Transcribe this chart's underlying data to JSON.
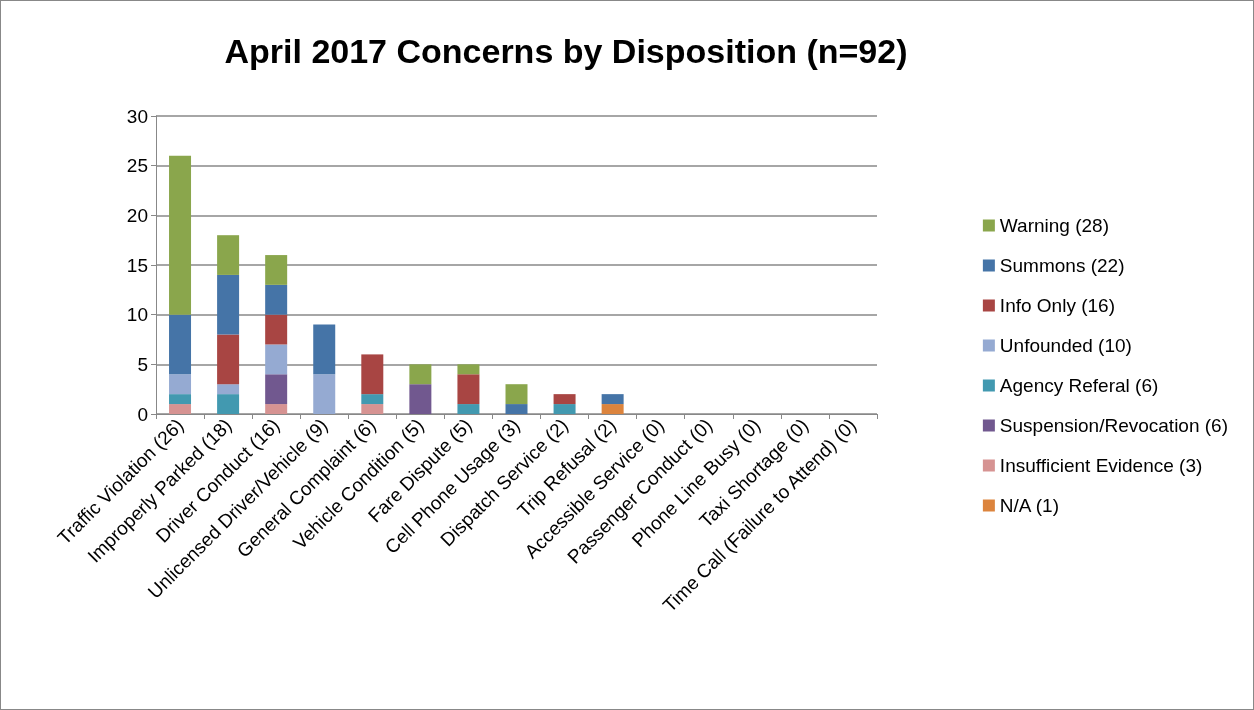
{
  "chart_data": {
    "type": "bar",
    "title": "April 2017 Concerns by Disposition (n=92)",
    "stacked": true,
    "legend": "right",
    "grid": "y",
    "categories": [
      "Traffic Violation (26)",
      "Improperly Parked (18)",
      "Driver Conduct (16)",
      "Unlicensed Driver/Vehicle (9)",
      "General Complaint (6)",
      "Vehicle Condition (5)",
      "Fare Dispute (5)",
      "Cell Phone Usage (3)",
      "Dispatch Service (2)",
      "Trip Refusal (2)",
      "Accessible Service (0)",
      "Passenger Conduct (0)",
      "Phone Line Busy (0)",
      "Taxi Shortage (0)",
      "Time Call (Failure to Attend) (0)"
    ],
    "series": [
      {
        "name": "N/A (1)",
        "color": "#dc843d",
        "values": [
          0,
          0,
          0,
          0,
          0,
          0,
          0,
          0,
          0,
          1,
          0,
          0,
          0,
          0,
          0
        ]
      },
      {
        "name": "Insufficient Evidence (3)",
        "color": "#d69392",
        "values": [
          1,
          0,
          1,
          0,
          1,
          0,
          0,
          0,
          0,
          0,
          0,
          0,
          0,
          0,
          0
        ]
      },
      {
        "name": "Suspension/Revocation (6)",
        "color": "#71588f",
        "values": [
          0,
          0,
          3,
          0,
          0,
          3,
          0,
          0,
          0,
          0,
          0,
          0,
          0,
          0,
          0
        ]
      },
      {
        "name": "Agency Referal (6)",
        "color": "#4299b0",
        "values": [
          1,
          2,
          0,
          0,
          1,
          0,
          1,
          0,
          1,
          0,
          0,
          0,
          0,
          0,
          0
        ]
      },
      {
        "name": "Unfounded (10)",
        "color": "#95aad2",
        "values": [
          2,
          1,
          3,
          4,
          0,
          0,
          0,
          0,
          0,
          0,
          0,
          0,
          0,
          0,
          0
        ]
      },
      {
        "name": "Info Only (16)",
        "color": "#a84543",
        "values": [
          0,
          5,
          3,
          0,
          4,
          0,
          3,
          0,
          1,
          0,
          0,
          0,
          0,
          0,
          0
        ]
      },
      {
        "name": "Summons (22)",
        "color": "#4574a7",
        "values": [
          6,
          6,
          3,
          5,
          0,
          0,
          0,
          1,
          0,
          1,
          0,
          0,
          0,
          0,
          0
        ]
      },
      {
        "name": "Warning (28)",
        "color": "#8aa64c",
        "values": [
          16,
          4,
          3,
          0,
          0,
          2,
          1,
          2,
          0,
          0,
          0,
          0,
          0,
          0,
          0
        ]
      }
    ],
    "ylim": [
      0,
      30
    ],
    "yticks": [
      0,
      5,
      10,
      15,
      20,
      25,
      30
    ]
  }
}
